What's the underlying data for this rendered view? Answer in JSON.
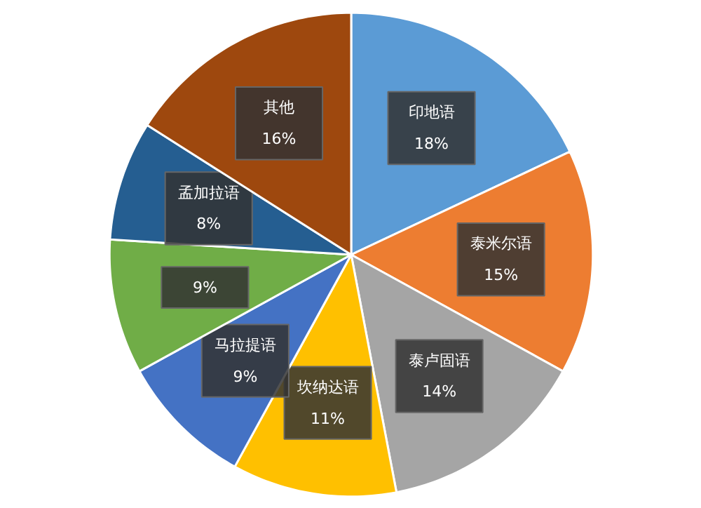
{
  "chart_data": {
    "type": "pie",
    "categories": [
      "印地语",
      "泰米尔语",
      "泰卢固语",
      "坎纳达语",
      "马拉提语",
      null,
      "孟加拉语",
      "其他"
    ],
    "values": [
      18,
      15,
      14,
      11,
      9,
      9,
      8,
      16
    ],
    "value_labels": [
      "18%",
      "15%",
      "14%",
      "11%",
      "9%",
      "9%",
      "8%",
      "16%"
    ],
    "colors": [
      "#5b9bd5",
      "#ed7d31",
      "#a5a5a5",
      "#ffc000",
      "#4472c4",
      "#70ad47",
      "#255e91",
      "#9e480e"
    ],
    "legend": false
  }
}
